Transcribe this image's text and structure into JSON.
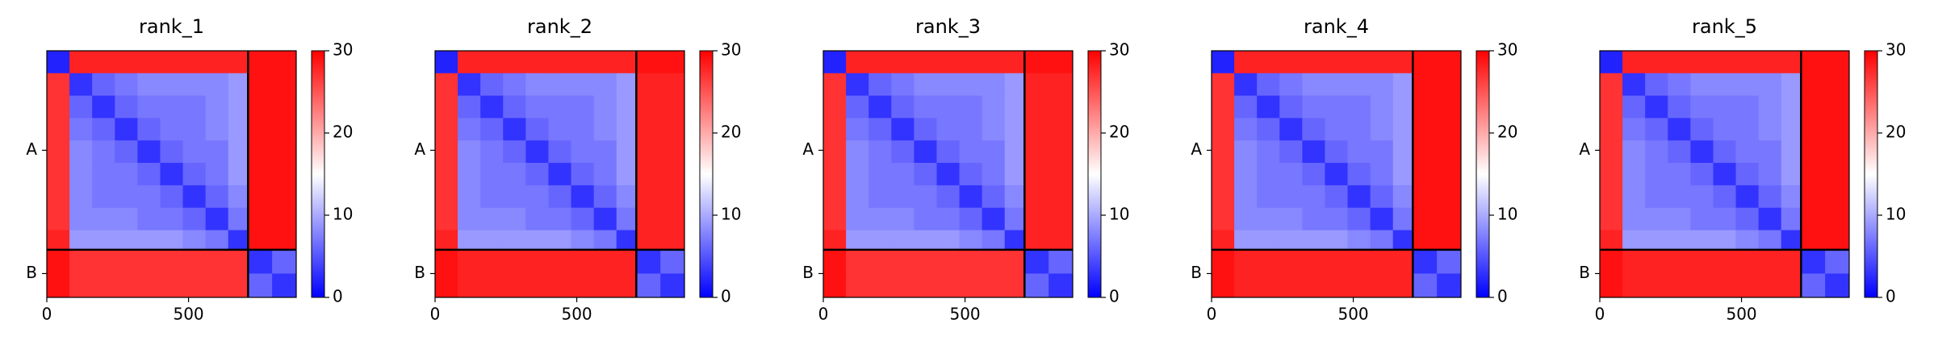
{
  "chart_data": [
    {
      "type": "heatmap",
      "title": "rank_1",
      "xlim": [
        0,
        880
      ],
      "xticks": [
        0,
        500
      ],
      "ylim": [
        880,
        0
      ],
      "yticks": [
        {
          "value": 355,
          "label": "A"
        },
        {
          "value": 795,
          "label": "B"
        }
      ],
      "bins": [
        0,
        80,
        160,
        240,
        320,
        400,
        480,
        560,
        640,
        710,
        795,
        880
      ],
      "chain_breaks": [
        710
      ],
      "clim": [
        0,
        30
      ],
      "cticks": [
        0,
        10,
        20,
        30
      ],
      "colormap": [
        "#0000ff",
        "#ffffff",
        "#ff0000"
      ],
      "values": [
        [
          2,
          28,
          28,
          28,
          28,
          28,
          28,
          28,
          28,
          29,
          29
        ],
        [
          27,
          3,
          6,
          7,
          8,
          8,
          8,
          8,
          9,
          29,
          29
        ],
        [
          27,
          6,
          3,
          6,
          7,
          7,
          7,
          8,
          9,
          29,
          29
        ],
        [
          27,
          7,
          6,
          3,
          6,
          7,
          7,
          8,
          9,
          29,
          29
        ],
        [
          27,
          8,
          7,
          6,
          3,
          6,
          7,
          7,
          9,
          29,
          29
        ],
        [
          27,
          8,
          7,
          7,
          6,
          3,
          6,
          7,
          9,
          29,
          29
        ],
        [
          27,
          8,
          7,
          7,
          7,
          6,
          3,
          6,
          8,
          29,
          29
        ],
        [
          27,
          8,
          8,
          8,
          7,
          7,
          6,
          3,
          7,
          29,
          29
        ],
        [
          28,
          9,
          9,
          9,
          9,
          9,
          8,
          7,
          3,
          29,
          29
        ],
        [
          29,
          27,
          27,
          27,
          27,
          27,
          27,
          27,
          27,
          3,
          6
        ],
        [
          29,
          27,
          27,
          27,
          27,
          27,
          27,
          27,
          27,
          6,
          3
        ]
      ]
    },
    {
      "type": "heatmap",
      "title": "rank_2",
      "xlim": [
        0,
        880
      ],
      "xticks": [
        0,
        500
      ],
      "ylim": [
        880,
        0
      ],
      "yticks": [
        {
          "value": 355,
          "label": "A"
        },
        {
          "value": 795,
          "label": "B"
        }
      ],
      "bins": [
        0,
        80,
        160,
        240,
        320,
        400,
        480,
        560,
        640,
        710,
        795,
        880
      ],
      "chain_breaks": [
        710
      ],
      "clim": [
        0,
        30
      ],
      "cticks": [
        0,
        10,
        20,
        30
      ],
      "colormap": [
        "#0000ff",
        "#ffffff",
        "#ff0000"
      ],
      "values": [
        [
          2,
          28,
          28,
          28,
          28,
          28,
          28,
          28,
          28,
          29,
          29
        ],
        [
          27,
          3,
          6,
          7,
          8,
          8,
          8,
          8,
          9,
          28,
          28
        ],
        [
          27,
          6,
          3,
          6,
          7,
          7,
          7,
          8,
          9,
          28,
          28
        ],
        [
          27,
          7,
          6,
          3,
          6,
          7,
          7,
          8,
          9,
          28,
          28
        ],
        [
          27,
          8,
          7,
          6,
          3,
          6,
          7,
          7,
          9,
          28,
          28
        ],
        [
          27,
          8,
          7,
          7,
          6,
          3,
          6,
          7,
          9,
          28,
          28
        ],
        [
          27,
          8,
          7,
          7,
          7,
          6,
          3,
          6,
          8,
          28,
          28
        ],
        [
          27,
          8,
          8,
          8,
          7,
          7,
          6,
          3,
          7,
          28,
          28
        ],
        [
          28,
          9,
          9,
          9,
          9,
          9,
          8,
          7,
          3,
          28,
          28
        ],
        [
          29,
          28,
          28,
          28,
          28,
          28,
          28,
          28,
          28,
          3,
          6
        ],
        [
          29,
          28,
          28,
          28,
          28,
          28,
          28,
          28,
          28,
          6,
          3
        ]
      ]
    },
    {
      "type": "heatmap",
      "title": "rank_3",
      "xlim": [
        0,
        880
      ],
      "xticks": [
        0,
        500
      ],
      "ylim": [
        880,
        0
      ],
      "yticks": [
        {
          "value": 355,
          "label": "A"
        },
        {
          "value": 795,
          "label": "B"
        }
      ],
      "bins": [
        0,
        80,
        160,
        240,
        320,
        400,
        480,
        560,
        640,
        710,
        795,
        880
      ],
      "chain_breaks": [
        710
      ],
      "clim": [
        0,
        30
      ],
      "cticks": [
        0,
        10,
        20,
        30
      ],
      "colormap": [
        "#0000ff",
        "#ffffff",
        "#ff0000"
      ],
      "values": [
        [
          2,
          28,
          28,
          28,
          28,
          28,
          28,
          28,
          28,
          29,
          29
        ],
        [
          27,
          3,
          6,
          7,
          8,
          8,
          8,
          8,
          9,
          28,
          28
        ],
        [
          27,
          6,
          3,
          6,
          7,
          7,
          7,
          8,
          9,
          28,
          28
        ],
        [
          27,
          7,
          6,
          3,
          6,
          7,
          7,
          8,
          9,
          28,
          28
        ],
        [
          27,
          8,
          7,
          6,
          3,
          6,
          7,
          7,
          9,
          28,
          28
        ],
        [
          27,
          8,
          7,
          7,
          6,
          3,
          6,
          7,
          9,
          28,
          28
        ],
        [
          27,
          8,
          7,
          7,
          7,
          6,
          3,
          6,
          8,
          28,
          28
        ],
        [
          27,
          8,
          8,
          8,
          7,
          7,
          6,
          3,
          7,
          28,
          28
        ],
        [
          28,
          9,
          9,
          9,
          9,
          9,
          8,
          7,
          3,
          28,
          28
        ],
        [
          29,
          27,
          27,
          27,
          27,
          27,
          27,
          27,
          27,
          3,
          6
        ],
        [
          29,
          27,
          27,
          27,
          27,
          27,
          27,
          27,
          27,
          6,
          3
        ]
      ]
    },
    {
      "type": "heatmap",
      "title": "rank_4",
      "xlim": [
        0,
        880
      ],
      "xticks": [
        0,
        500
      ],
      "ylim": [
        880,
        0
      ],
      "yticks": [
        {
          "value": 355,
          "label": "A"
        },
        {
          "value": 795,
          "label": "B"
        }
      ],
      "bins": [
        0,
        80,
        160,
        240,
        320,
        400,
        480,
        560,
        640,
        710,
        795,
        880
      ],
      "chain_breaks": [
        710
      ],
      "clim": [
        0,
        30
      ],
      "cticks": [
        0,
        10,
        20,
        30
      ],
      "colormap": [
        "#0000ff",
        "#ffffff",
        "#ff0000"
      ],
      "values": [
        [
          2,
          28,
          28,
          28,
          28,
          28,
          28,
          28,
          28,
          29,
          29
        ],
        [
          27,
          3,
          6,
          7,
          8,
          8,
          8,
          8,
          9,
          29,
          29
        ],
        [
          27,
          6,
          3,
          6,
          7,
          7,
          7,
          8,
          9,
          29,
          29
        ],
        [
          27,
          7,
          6,
          3,
          6,
          7,
          7,
          8,
          9,
          29,
          29
        ],
        [
          27,
          8,
          7,
          6,
          3,
          6,
          7,
          7,
          9,
          29,
          29
        ],
        [
          27,
          8,
          7,
          7,
          6,
          3,
          6,
          7,
          9,
          29,
          29
        ],
        [
          27,
          8,
          7,
          7,
          7,
          6,
          3,
          6,
          8,
          29,
          29
        ],
        [
          27,
          8,
          8,
          8,
          7,
          7,
          6,
          3,
          7,
          29,
          29
        ],
        [
          28,
          9,
          9,
          9,
          9,
          9,
          8,
          7,
          3,
          29,
          29
        ],
        [
          29,
          28,
          28,
          28,
          28,
          28,
          28,
          28,
          28,
          3,
          6
        ],
        [
          29,
          28,
          28,
          28,
          28,
          28,
          28,
          28,
          28,
          6,
          3
        ]
      ]
    },
    {
      "type": "heatmap",
      "title": "rank_5",
      "xlim": [
        0,
        880
      ],
      "xticks": [
        0,
        500
      ],
      "ylim": [
        880,
        0
      ],
      "yticks": [
        {
          "value": 355,
          "label": "A"
        },
        {
          "value": 795,
          "label": "B"
        }
      ],
      "bins": [
        0,
        80,
        160,
        240,
        320,
        400,
        480,
        560,
        640,
        710,
        795,
        880
      ],
      "chain_breaks": [
        710
      ],
      "clim": [
        0,
        30
      ],
      "cticks": [
        0,
        10,
        20,
        30
      ],
      "colormap": [
        "#0000ff",
        "#ffffff",
        "#ff0000"
      ],
      "values": [
        [
          2,
          28,
          28,
          28,
          28,
          28,
          28,
          28,
          28,
          29,
          29
        ],
        [
          27,
          3,
          6,
          7,
          8,
          8,
          8,
          8,
          9,
          29,
          29
        ],
        [
          27,
          6,
          3,
          6,
          7,
          7,
          7,
          8,
          9,
          29,
          29
        ],
        [
          27,
          7,
          6,
          3,
          6,
          7,
          7,
          8,
          9,
          29,
          29
        ],
        [
          27,
          8,
          7,
          6,
          3,
          6,
          7,
          7,
          9,
          29,
          29
        ],
        [
          27,
          8,
          7,
          7,
          6,
          3,
          6,
          7,
          9,
          29,
          29
        ],
        [
          27,
          8,
          7,
          7,
          7,
          6,
          3,
          6,
          8,
          29,
          29
        ],
        [
          27,
          8,
          8,
          8,
          7,
          7,
          6,
          3,
          7,
          29,
          29
        ],
        [
          28,
          9,
          9,
          9,
          9,
          9,
          8,
          7,
          3,
          29,
          29
        ],
        [
          29,
          28,
          28,
          28,
          28,
          28,
          28,
          28,
          28,
          3,
          6
        ],
        [
          29,
          28,
          28,
          28,
          28,
          28,
          28,
          28,
          28,
          6,
          3
        ]
      ]
    }
  ]
}
